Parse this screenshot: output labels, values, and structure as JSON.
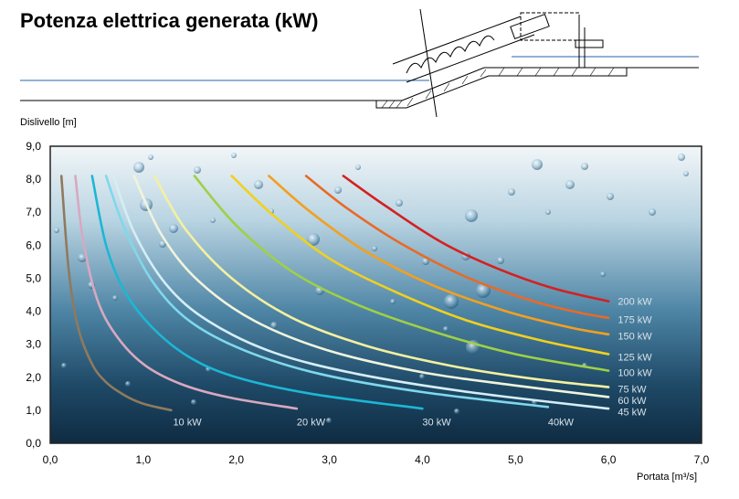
{
  "title": "Potenza elettrica generata (kW)",
  "chart_data": {
    "type": "line",
    "title": "Potenza elettrica generata (kW)",
    "xlabel": "Portata [m³/s]",
    "ylabel": "Dislivello [m]",
    "xlim": [
      0,
      7
    ],
    "ylim": [
      0,
      9
    ],
    "xticks": [
      "0,0",
      "1,0",
      "2,0",
      "3,0",
      "4,0",
      "5,0",
      "6,0",
      "7,0"
    ],
    "yticks": [
      "0,0",
      "1,0",
      "2,0",
      "3,0",
      "4,0",
      "5,0",
      "6,0",
      "7,0",
      "8,0",
      "9,0"
    ],
    "grid": false,
    "legend": "inline labels",
    "series": [
      {
        "name": "10 kW",
        "color": "#8f7a5e",
        "x": [
          0.12,
          0.2,
          0.3,
          0.45,
          0.6,
          0.8,
          1.0,
          1.3
        ],
        "y": [
          8.1,
          5.2,
          3.5,
          2.4,
          1.85,
          1.45,
          1.2,
          1.0
        ]
      },
      {
        "name": "20 kW",
        "color": "#d8a8c0",
        "x": [
          0.27,
          0.35,
          0.5,
          0.7,
          1.0,
          1.4,
          1.9,
          2.65
        ],
        "y": [
          8.1,
          6.2,
          4.4,
          3.3,
          2.4,
          1.8,
          1.4,
          1.05
        ]
      },
      {
        "name": "30 kW",
        "color": "#1cb7d4",
        "x": [
          0.45,
          0.6,
          0.8,
          1.1,
          1.5,
          2.0,
          2.8,
          4.0
        ],
        "y": [
          8.1,
          6.0,
          4.6,
          3.5,
          2.6,
          2.0,
          1.5,
          1.05
        ]
      },
      {
        "name": "40kW",
        "color": "#7fd8ec",
        "x": [
          0.6,
          0.8,
          1.1,
          1.5,
          2.1,
          2.9,
          4.0,
          5.35
        ],
        "y": [
          8.1,
          6.5,
          4.9,
          3.7,
          2.8,
          2.1,
          1.55,
          1.1
        ]
      },
      {
        "name": "45 kW",
        "color": "#d4eef6",
        "x": [
          0.68,
          0.9,
          1.25,
          1.7,
          2.4,
          3.3,
          4.5,
          6.0
        ],
        "y": [
          8.1,
          6.4,
          4.8,
          3.7,
          2.75,
          2.1,
          1.55,
          1.05
        ]
      },
      {
        "name": "60 kW",
        "color": "#f0f4dc",
        "x": [
          0.9,
          1.2,
          1.6,
          2.2,
          3.0,
          4.0,
          5.0,
          6.0
        ],
        "y": [
          8.1,
          6.3,
          4.9,
          3.7,
          2.8,
          2.15,
          1.75,
          1.4
        ]
      },
      {
        "name": "75 kW",
        "color": "#f4f0a0",
        "x": [
          1.12,
          1.45,
          1.95,
          2.6,
          3.4,
          4.3,
          5.2,
          6.0
        ],
        "y": [
          8.1,
          6.5,
          5.0,
          3.8,
          2.95,
          2.35,
          1.95,
          1.7
        ]
      },
      {
        "name": "100 kW",
        "color": "#9fd045",
        "x": [
          1.55,
          2.0,
          2.6,
          3.3,
          4.1,
          5.0,
          6.0
        ],
        "y": [
          8.1,
          6.6,
          5.2,
          4.2,
          3.4,
          2.7,
          2.2
        ]
      },
      {
        "name": "125 kW",
        "color": "#f0d020",
        "x": [
          1.95,
          2.4,
          3.0,
          3.7,
          4.5,
          5.3,
          6.0
        ],
        "y": [
          8.1,
          6.9,
          5.6,
          4.6,
          3.7,
          3.1,
          2.7
        ]
      },
      {
        "name": "150 kW",
        "color": "#f2a020",
        "x": [
          2.35,
          2.8,
          3.4,
          4.1,
          4.9,
          5.6,
          6.0
        ],
        "y": [
          8.1,
          7.0,
          5.8,
          4.8,
          4.0,
          3.5,
          3.3
        ]
      },
      {
        "name": "175 kW",
        "color": "#e86a28",
        "x": [
          2.75,
          3.2,
          3.8,
          4.5,
          5.2,
          5.7,
          6.0
        ],
        "y": [
          8.1,
          7.1,
          6.0,
          5.0,
          4.3,
          3.95,
          3.8
        ]
      },
      {
        "name": "200 kW",
        "color": "#d42020",
        "x": [
          3.15,
          3.6,
          4.2,
          4.8,
          5.4,
          6.0
        ],
        "y": [
          8.1,
          7.2,
          6.1,
          5.3,
          4.7,
          4.3
        ]
      }
    ],
    "label_positions": {
      "10 kW": [
        1.32,
        0.65
      ],
      "20 kW": [
        2.65,
        0.65
      ],
      "30 kW": [
        4.0,
        0.65
      ],
      "40kW": [
        5.35,
        0.65
      ],
      "45 kW": [
        6.1,
        0.95
      ],
      "60 kW": [
        6.1,
        1.3
      ],
      "75 kW": [
        6.1,
        1.65
      ],
      "100 kW": [
        6.1,
        2.15
      ],
      "125 kW": [
        6.1,
        2.62
      ],
      "150 kW": [
        6.1,
        3.25
      ],
      "175 kW": [
        6.1,
        3.75
      ],
      "200 kW": [
        6.1,
        4.3
      ]
    }
  }
}
